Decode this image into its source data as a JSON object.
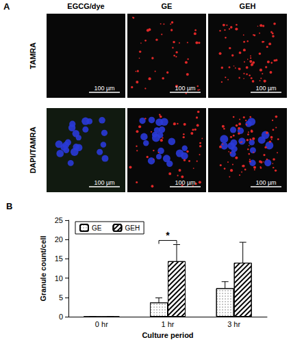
{
  "chart_data": {
    "type": "bar",
    "title": "B",
    "categories": [
      "0 hr",
      "1 hr",
      "3 hr"
    ],
    "series": [
      {
        "name": "GE",
        "color": "#ffffff",
        "values": [
          0,
          3.7,
          7.4
        ],
        "errors": [
          0,
          1.2,
          1.7
        ]
      },
      {
        "name": "GEH",
        "color": "#ffffff",
        "values": [
          0,
          14.4,
          14.0
        ],
        "errors": [
          0,
          4.3,
          5.3
        ]
      }
    ],
    "x_label": "Culture period",
    "y_label": "Granule count/cell",
    "ylim": [
      0,
      25
    ],
    "yticks": [
      0,
      5,
      10,
      15,
      20,
      25
    ],
    "legend": "upper left",
    "grid": false,
    "annotations": [
      {
        "text": "*",
        "category": "1 hr"
      }
    ]
  },
  "image_panel": {
    "label": "A",
    "columns": [
      "EGCG/dye",
      "GE",
      "GEH"
    ],
    "rows": [
      "TAMRA",
      "DAPI/TAMRA"
    ],
    "scale_bar": "100 µm"
  }
}
